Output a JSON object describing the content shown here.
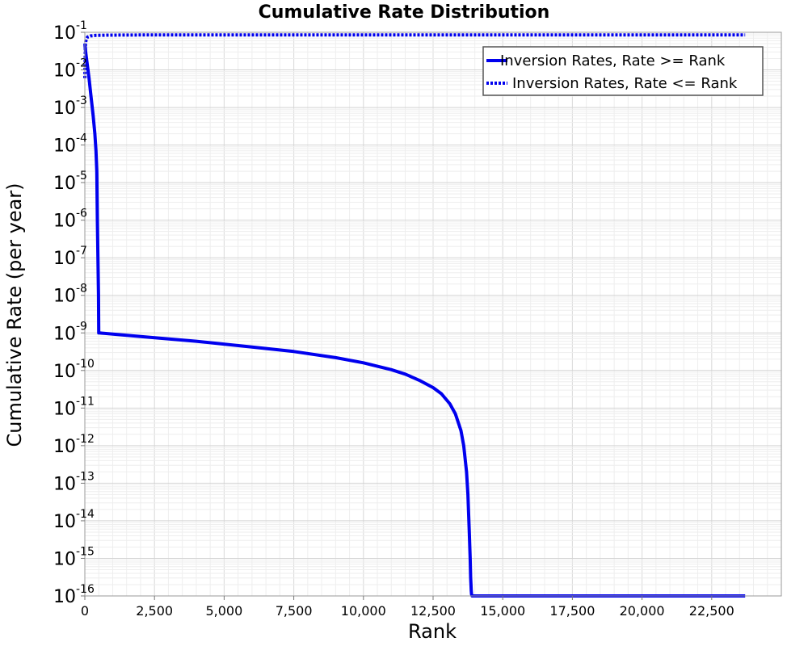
{
  "chart_data": {
    "type": "line",
    "title": "Cumulative Rate Distribution",
    "xlabel": "Rank",
    "ylabel": "Cumulative Rate (per year)",
    "xlim": [
      0,
      25000
    ],
    "ylim": [
      1e-16,
      0.1
    ],
    "y_scale": "log",
    "grid": true,
    "legend_position": "top-right",
    "x_ticks": [
      "0",
      "2,500",
      "5,000",
      "7,500",
      "10,000",
      "12,500",
      "15,000",
      "17,500",
      "20,000",
      "22,500"
    ],
    "x_tick_values": [
      0,
      2500,
      5000,
      7500,
      10000,
      12500,
      15000,
      17500,
      20000,
      22500
    ],
    "y_ticks": [
      {
        "base": "10",
        "exp": "-16"
      },
      {
        "base": "10",
        "exp": "-15"
      },
      {
        "base": "10",
        "exp": "-14"
      },
      {
        "base": "10",
        "exp": "-13"
      },
      {
        "base": "10",
        "exp": "-12"
      },
      {
        "base": "10",
        "exp": "-11"
      },
      {
        "base": "10",
        "exp": "-10"
      },
      {
        "base": "10",
        "exp": "-9"
      },
      {
        "base": "10",
        "exp": "-8"
      },
      {
        "base": "10",
        "exp": "-7"
      },
      {
        "base": "10",
        "exp": "-6"
      },
      {
        "base": "10",
        "exp": "-5"
      },
      {
        "base": "10",
        "exp": "-4"
      },
      {
        "base": "10",
        "exp": "-3"
      },
      {
        "base": "10",
        "exp": "-2"
      },
      {
        "base": "10",
        "exp": "-1"
      }
    ],
    "y_tick_exponents": [
      -16,
      -15,
      -14,
      -13,
      -12,
      -11,
      -10,
      -9,
      -8,
      -7,
      -6,
      -5,
      -4,
      -3,
      -2,
      -1
    ],
    "series": [
      {
        "name": "Inversion Rates, Rate >= Rank",
        "color": "#0000ee",
        "style": "solid",
        "x": [
          0,
          30,
          80,
          150,
          220,
          300,
          360,
          400,
          430,
          450,
          470,
          490,
          500,
          520,
          2000,
          4000,
          6000,
          7500,
          9000,
          10000,
          11000,
          11500,
          12000,
          12500,
          12800,
          13100,
          13300,
          13500,
          13600,
          13700,
          13750,
          13800,
          13830,
          13850,
          13860,
          13870,
          13880,
          13900,
          23700
        ],
        "y": [
          0.05,
          0.03,
          0.015,
          0.006,
          0.002,
          0.0006,
          0.0002,
          7e-05,
          2e-05,
          1e-06,
          1e-07,
          1e-08,
          1e-09,
          1e-09,
          8e-10,
          6e-10,
          4.2e-10,
          3.2e-10,
          2.2e-10,
          1.6e-10,
          1.05e-10,
          8e-11,
          5.5e-11,
          3.5e-11,
          2.4e-11,
          1.3e-11,
          7e-12,
          2.5e-12,
          1e-12,
          2e-13,
          5e-14,
          5e-15,
          1e-15,
          3e-16,
          2e-16,
          1.4e-16,
          1.1e-16,
          1e-16,
          1e-16
        ]
      },
      {
        "name": "Inversion Rates, Rate <= Rank",
        "color": "#0000ee",
        "style": "dotted",
        "x": [
          0,
          20,
          50,
          100,
          200,
          400,
          800,
          2000,
          23700
        ],
        "y": [
          0.006,
          0.05,
          0.065,
          0.075,
          0.08,
          0.083,
          0.084,
          0.085,
          0.085
        ]
      }
    ]
  }
}
